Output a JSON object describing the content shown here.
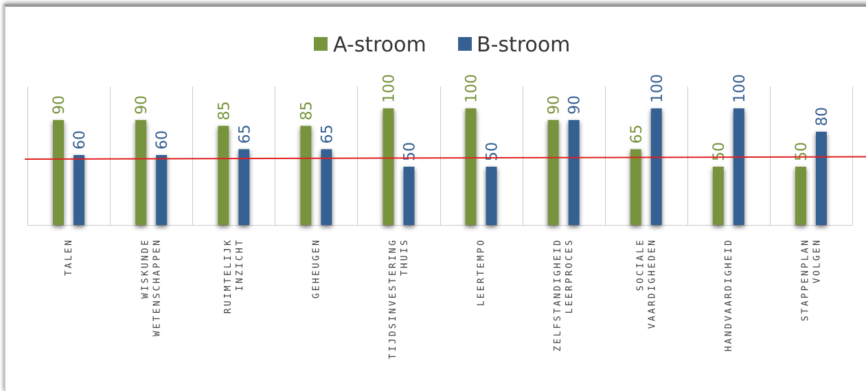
{
  "chart_data": {
    "type": "bar",
    "categories": [
      [
        "TALEN"
      ],
      [
        "WISKUNDE",
        "WETENSCHAPPEN"
      ],
      [
        "RUIMTELIJK",
        "INZICHT"
      ],
      [
        "GEHEUGEN"
      ],
      [
        "TIJDSINVESTERING",
        "THUIS"
      ],
      [
        "LEERTEMPO"
      ],
      [
        "ZELFSTANDIGHEID",
        "LEERPROCES"
      ],
      [
        "SOCIALE",
        "VAARDIGHEDEN"
      ],
      [
        "HANDVAARDIGHEID"
      ],
      [
        "STAPPENPLAN",
        "VOLGEN"
      ]
    ],
    "series": [
      {
        "name": "A-stroom",
        "color": "#77933c",
        "values": [
          90,
          90,
          85,
          85,
          100,
          100,
          90,
          65,
          50,
          50
        ]
      },
      {
        "name": "B-stroom",
        "color": "#366092",
        "values": [
          60,
          60,
          65,
          65,
          50,
          50,
          90,
          100,
          100,
          80
        ]
      }
    ],
    "reference_line": {
      "color": "#e02020",
      "y_start": 56.5,
      "y_end": 58.5
    },
    "ylim": [
      0,
      100
    ],
    "grid": "vertical separators between categories",
    "legend": "top-center",
    "label_color_by_series": true
  }
}
